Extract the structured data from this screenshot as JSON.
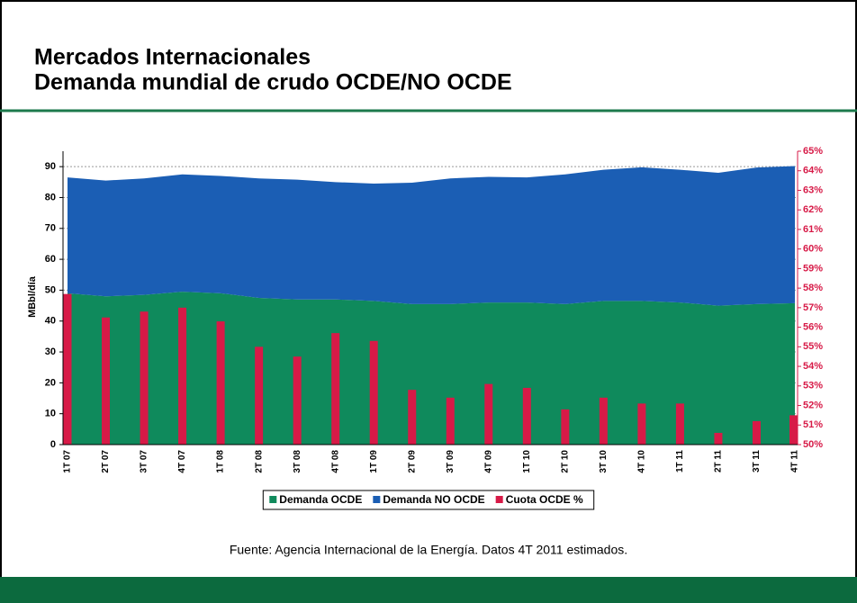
{
  "chart_data": {
    "type": "stacked-area-bar",
    "title": "Mercados Internacionales",
    "subtitle": "Demanda mundial de crudo OCDE/NO OCDE",
    "ylabel": "MBbl/día",
    "source": "Fuente: Agencia Internacional de la Energía. Datos 4T 2011 estimados.",
    "categories": [
      "1T 07",
      "2T 07",
      "3T 07",
      "4T 07",
      "1T 08",
      "2T 08",
      "3T 08",
      "4T 08",
      "1T 09",
      "2T 09",
      "3T 09",
      "4T 09",
      "1T 10",
      "2T 10",
      "3T 10",
      "4T 10",
      "1T 11",
      "2T 11",
      "3T 11",
      "4T 11"
    ],
    "series": [
      {
        "name": "Demanda OCDE",
        "color": "#0f8a5c",
        "type": "area",
        "values": [
          49,
          48,
          48.5,
          49.5,
          49,
          47.5,
          47,
          47,
          46.5,
          45.5,
          45.5,
          46,
          46,
          45.5,
          46.5,
          46.5,
          46,
          45,
          45.5,
          45.8
        ]
      },
      {
        "name": "Demanda NO OCDE",
        "color": "#1b5eb4",
        "type": "area",
        "values": [
          37.5,
          37.5,
          37.7,
          38,
          38,
          38.7,
          38.8,
          38,
          38,
          39.3,
          40.7,
          40.7,
          40.5,
          42,
          42.5,
          43.3,
          43,
          43,
          44.2,
          44.4
        ]
      },
      {
        "name": "Cuota OCDE %",
        "color": "#d71a47",
        "type": "bar",
        "axis": "y2",
        "values": [
          57.7,
          56.5,
          56.8,
          57.0,
          56.3,
          55.0,
          54.5,
          55.7,
          55.3,
          52.8,
          52.4,
          53.1,
          52.9,
          51.8,
          52.4,
          52.1,
          52.1,
          50.6,
          51.2,
          51.5
        ]
      }
    ],
    "ylim": [
      0,
      95
    ],
    "yticks": [
      0,
      10,
      20,
      30,
      40,
      50,
      60,
      70,
      80,
      90
    ],
    "y2lim": [
      50,
      65
    ],
    "y2ticks": [
      {
        "value": 50,
        "label": "50%"
      },
      {
        "value": 51,
        "label": "51%"
      },
      {
        "value": 52,
        "label": "52%"
      },
      {
        "value": 53,
        "label": "53%"
      },
      {
        "value": 54,
        "label": "54%"
      },
      {
        "value": 55,
        "label": "55%"
      },
      {
        "value": 56,
        "label": "56%"
      },
      {
        "value": 57,
        "label": "57%"
      },
      {
        "value": 58,
        "label": "58%"
      },
      {
        "value": 59,
        "label": "59%"
      },
      {
        "value": 60,
        "label": "60%"
      },
      {
        "value": 61,
        "label": "61%"
      },
      {
        "value": 62,
        "label": "62%"
      },
      {
        "value": 63,
        "label": "63%"
      },
      {
        "value": 64,
        "label": "64%"
      },
      {
        "value": 65,
        "label": "65%"
      }
    ],
    "grid": true,
    "legend": "bottom"
  }
}
